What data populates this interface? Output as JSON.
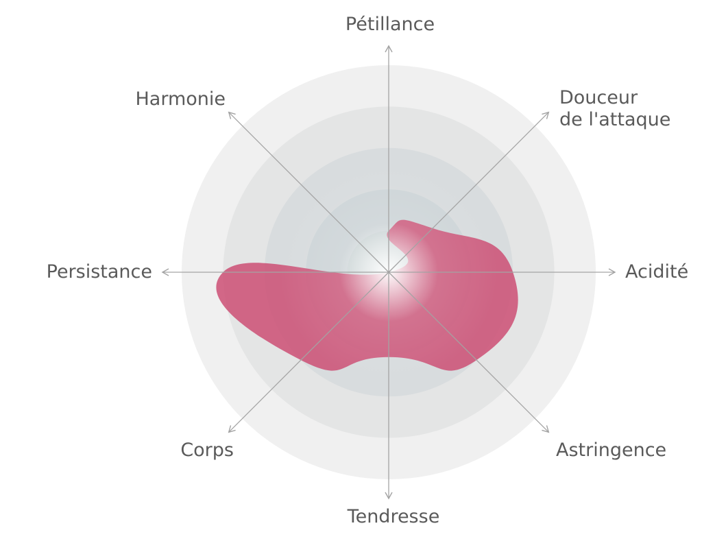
{
  "chart_data": {
    "type": "radar",
    "title": "",
    "axes": [
      {
        "name": "Pétillance",
        "lines": [
          "Pétillance"
        ],
        "value": 0.2
      },
      {
        "name": "Douceur de l'attaque",
        "lines": [
          "Douceur",
          "de l'attaque"
        ],
        "value": 0.3
      },
      {
        "name": "Acidité",
        "lines": [
          "Acidité"
        ],
        "value": 0.6
      },
      {
        "name": "Astringence",
        "lines": [
          "Astringence"
        ],
        "value": 0.6
      },
      {
        "name": "Tendresse",
        "lines": [
          "Tendresse"
        ],
        "value": 0.41
      },
      {
        "name": "Corps",
        "lines": [
          "Corps"
        ],
        "value": 0.6
      },
      {
        "name": "Persistance",
        "lines": [
          "Persistance"
        ],
        "value": 0.8
      },
      {
        "name": "Harmonie",
        "lines": [
          "Harmonie"
        ],
        "value": 0.0
      }
    ],
    "scale": {
      "min": 0,
      "max": 1,
      "rings": 5
    },
    "grid": true,
    "legend": "none",
    "shape_style": "smoothed"
  },
  "colors": {
    "fill": "#cc4f74",
    "center_glow": "#ffffff",
    "axis": "#a3a3a3",
    "label": "#5a5a5a",
    "rings": [
      "#f0f0f0",
      "#e4e5e5",
      "#d8dcde",
      "#ced5d8",
      "#c7d1d2"
    ]
  }
}
